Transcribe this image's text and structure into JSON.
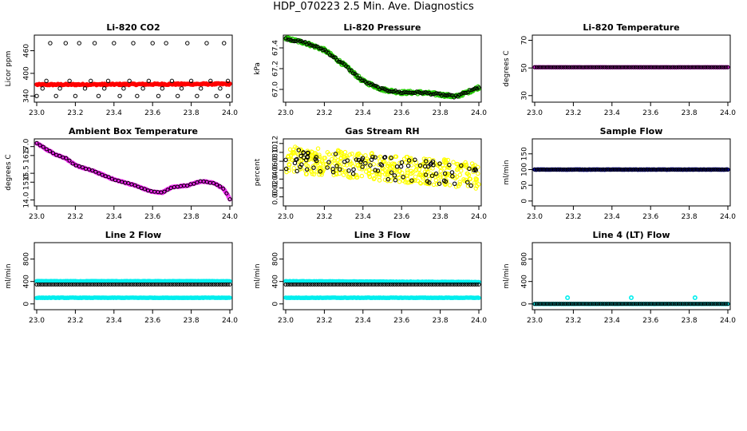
{
  "page_title": "HDP_070223  2.5 Min. Ave. Diagnostics",
  "colors": {
    "axes": "#000000",
    "red": "#ff0000",
    "green": "#22cc00",
    "magenta": "#ee22ee",
    "yellow": "#ffff00",
    "blue": "#0000cc",
    "cyan": "#00eeee",
    "black_marker": "#000000"
  },
  "chart_data": [
    {
      "type": "scatter",
      "title": "Li-820 CO2",
      "ylabel": "Licor ppm",
      "xlabel": "",
      "xlim": [
        23.0,
        24.0
      ],
      "ylim": [
        330,
        495
      ],
      "xticks": [
        "23.0",
        "23.2",
        "23.4",
        "23.6",
        "23.8",
        "24.0"
      ],
      "yticks": [
        340,
        400,
        460
      ],
      "series": [
        {
          "color": "red",
          "style": "dense",
          "y_start": 370,
          "y_end": 372,
          "noise": 2
        },
        {
          "color": "black",
          "style": "open",
          "points": [
            [
              23.0,
              340
            ],
            [
              23.03,
              360
            ],
            [
              23.05,
              380
            ],
            [
              23.07,
              480
            ],
            [
              23.1,
              340
            ],
            [
              23.12,
              360
            ],
            [
              23.15,
              480
            ],
            [
              23.17,
              380
            ],
            [
              23.2,
              340
            ],
            [
              23.22,
              480
            ],
            [
              23.25,
              360
            ],
            [
              23.28,
              380
            ],
            [
              23.3,
              480
            ],
            [
              23.32,
              340
            ],
            [
              23.35,
              360
            ],
            [
              23.37,
              380
            ],
            [
              23.4,
              480
            ],
            [
              23.43,
              340
            ],
            [
              23.45,
              360
            ],
            [
              23.48,
              380
            ],
            [
              23.5,
              480
            ],
            [
              23.52,
              340
            ],
            [
              23.55,
              360
            ],
            [
              23.58,
              380
            ],
            [
              23.6,
              480
            ],
            [
              23.63,
              340
            ],
            [
              23.65,
              360
            ],
            [
              23.67,
              480
            ],
            [
              23.7,
              380
            ],
            [
              23.73,
              340
            ],
            [
              23.75,
              360
            ],
            [
              23.78,
              480
            ],
            [
              23.8,
              380
            ],
            [
              23.83,
              340
            ],
            [
              23.85,
              360
            ],
            [
              23.88,
              480
            ],
            [
              23.9,
              380
            ],
            [
              23.93,
              340
            ],
            [
              23.95,
              360
            ],
            [
              23.97,
              480
            ],
            [
              23.99,
              380
            ],
            [
              23.99,
              340
            ]
          ]
        }
      ]
    },
    {
      "type": "scatter",
      "title": "Li-820 Pressure",
      "ylabel": "kPa",
      "xlabel": "",
      "xlim": [
        23.0,
        24.0
      ],
      "ylim": [
        66.9,
        67.5
      ],
      "xticks": [
        "23.0",
        "23.2",
        "23.4",
        "23.6",
        "23.8",
        "24.0"
      ],
      "yticks": [
        "67.0",
        "67.2",
        "67.4"
      ],
      "series": [
        {
          "color": "green",
          "style": "dense-curve",
          "noise": 0.015,
          "curve": [
            [
              23.0,
              67.49
            ],
            [
              23.1,
              67.45
            ],
            [
              23.2,
              67.38
            ],
            [
              23.3,
              67.24
            ],
            [
              23.4,
              67.08
            ],
            [
              23.5,
              67.0
            ],
            [
              23.6,
              66.97
            ],
            [
              23.7,
              66.97
            ],
            [
              23.8,
              66.95
            ],
            [
              23.88,
              66.93
            ],
            [
              23.95,
              66.98
            ],
            [
              24.0,
              67.02
            ]
          ]
        },
        {
          "color": "black",
          "style": "open-curve",
          "count": 110,
          "noise": 0.01,
          "curve": [
            [
              23.0,
              67.49
            ],
            [
              23.1,
              67.45
            ],
            [
              23.2,
              67.38
            ],
            [
              23.3,
              67.24
            ],
            [
              23.4,
              67.08
            ],
            [
              23.5,
              67.0
            ],
            [
              23.6,
              66.97
            ],
            [
              23.7,
              66.97
            ],
            [
              23.8,
              66.95
            ],
            [
              23.88,
              66.93
            ],
            [
              23.95,
              66.98
            ],
            [
              24.0,
              67.02
            ]
          ]
        }
      ]
    },
    {
      "type": "scatter",
      "title": "Li-820 Temperature",
      "ylabel": "degrees C",
      "xlabel": "",
      "xlim": [
        23.0,
        24.0
      ],
      "ylim": [
        27,
        72
      ],
      "xticks": [
        "23.0",
        "23.2",
        "23.4",
        "23.6",
        "23.8",
        "24.0"
      ],
      "yticks": [
        30,
        50,
        70
      ],
      "series": [
        {
          "color": "magenta",
          "style": "dense",
          "y_start": 50.5,
          "y_end": 50.5,
          "noise": 0.1
        },
        {
          "color": "black",
          "style": "open-line",
          "count": 95,
          "y": 50.5
        }
      ]
    },
    {
      "type": "scatter",
      "title": "Ambient Box Temperature",
      "ylabel": "degrees C",
      "xlabel": "",
      "xlim": [
        23.0,
        24.0
      ],
      "ylim": [
        13.8,
        17.3
      ],
      "xticks": [
        "23.0",
        "23.2",
        "23.4",
        "23.6",
        "23.8",
        "24.0"
      ],
      "yticks": [
        "14.0",
        "15.0",
        "15.5",
        "16.5",
        "17.0"
      ],
      "series": [
        {
          "color": "magenta",
          "style": "dense-curve",
          "noise": 0.03,
          "curve": [
            [
              23.0,
              17.2
            ],
            [
              23.05,
              16.85
            ],
            [
              23.1,
              16.55
            ],
            [
              23.15,
              16.35
            ],
            [
              23.2,
              15.95
            ],
            [
              23.3,
              15.6
            ],
            [
              23.4,
              15.15
            ],
            [
              23.5,
              14.85
            ],
            [
              23.6,
              14.45
            ],
            [
              23.65,
              14.42
            ],
            [
              23.7,
              14.72
            ],
            [
              23.78,
              14.82
            ],
            [
              23.85,
              15.05
            ],
            [
              23.92,
              14.95
            ],
            [
              23.97,
              14.6
            ],
            [
              24.0,
              14.05
            ]
          ]
        },
        {
          "color": "black",
          "style": "open-curve",
          "count": 60,
          "noise": 0.02,
          "curve": [
            [
              23.0,
              17.2
            ],
            [
              23.05,
              16.85
            ],
            [
              23.1,
              16.55
            ],
            [
              23.15,
              16.35
            ],
            [
              23.2,
              15.95
            ],
            [
              23.3,
              15.6
            ],
            [
              23.4,
              15.15
            ],
            [
              23.5,
              14.85
            ],
            [
              23.6,
              14.45
            ],
            [
              23.65,
              14.42
            ],
            [
              23.7,
              14.72
            ],
            [
              23.78,
              14.82
            ],
            [
              23.85,
              15.05
            ],
            [
              23.92,
              14.95
            ],
            [
              23.97,
              14.6
            ],
            [
              24.0,
              14.05
            ]
          ]
        }
      ]
    },
    {
      "type": "scatter",
      "title": "Gas Stream RH",
      "ylabel": "percent",
      "xlabel": "",
      "xlim": [
        23.0,
        24.0
      ],
      "ylim": [
        -0.015,
        0.125
      ],
      "xticks": [
        "23.0",
        "23.2",
        "23.4",
        "23.6",
        "23.8",
        "24.0"
      ],
      "yticks": [
        "0.00",
        "0.02",
        "0.04",
        "0.06",
        "0.08",
        "0.10",
        "0.12"
      ],
      "series": [
        {
          "color": "yellow",
          "style": "scatter-band",
          "count": 420,
          "y_start": 0.085,
          "y_end": 0.048,
          "spread": 0.03
        },
        {
          "color": "black",
          "style": "scatter-band",
          "count": 95,
          "y_start": 0.085,
          "y_end": 0.045,
          "spread": 0.025
        }
      ]
    },
    {
      "type": "scatter",
      "title": "Sample Flow",
      "ylabel": "ml/min",
      "xlabel": "",
      "xlim": [
        23.0,
        24.0
      ],
      "ylim": [
        -8,
        190
      ],
      "xticks": [
        "23.0",
        "23.2",
        "23.4",
        "23.6",
        "23.8",
        "24.0"
      ],
      "yticks": [
        0,
        50,
        100,
        150
      ],
      "series": [
        {
          "color": "blue",
          "style": "dense",
          "y_start": 100,
          "y_end": 100,
          "noise": 0.5
        },
        {
          "color": "black",
          "style": "open-line",
          "count": 95,
          "y": 100
        }
      ]
    },
    {
      "type": "scatter",
      "title": "Line 2 Flow",
      "ylabel": "ml/min",
      "xlabel": "",
      "xlim": [
        23.0,
        24.0
      ],
      "ylim": [
        -60,
        1050
      ],
      "xticks": [
        "23.0",
        "23.2",
        "23.4",
        "23.6",
        "23.8",
        "24.0"
      ],
      "yticks": [
        0,
        400,
        800
      ],
      "series": [
        {
          "color": "cyan",
          "style": "dense",
          "y_start": 405,
          "y_end": 405,
          "noise": 4
        },
        {
          "color": "cyan",
          "style": "dense",
          "y_start": 110,
          "y_end": 110,
          "noise": 4
        },
        {
          "color": "black",
          "style": "open-line",
          "count": 95,
          "y": 345
        }
      ]
    },
    {
      "type": "scatter",
      "title": "Line 3 Flow",
      "ylabel": "ml/min",
      "xlabel": "",
      "xlim": [
        23.0,
        24.0
      ],
      "ylim": [
        -60,
        1050
      ],
      "xticks": [
        "23.0",
        "23.2",
        "23.4",
        "23.6",
        "23.8",
        "24.0"
      ],
      "yticks": [
        0,
        400,
        800
      ],
      "series": [
        {
          "color": "cyan",
          "style": "dense",
          "y_start": 405,
          "y_end": 390,
          "noise": 4
        },
        {
          "color": "cyan",
          "style": "dense",
          "y_start": 110,
          "y_end": 110,
          "noise": 4
        },
        {
          "color": "black",
          "style": "open-line",
          "count": 95,
          "y": 345
        }
      ]
    },
    {
      "type": "scatter",
      "title": "Line 4 (LT) Flow",
      "ylabel": "ml/min",
      "xlabel": "",
      "xlim": [
        23.0,
        24.0
      ],
      "ylim": [
        -60,
        1050
      ],
      "xticks": [
        "23.0",
        "23.2",
        "23.4",
        "23.6",
        "23.8",
        "24.0"
      ],
      "yticks": [
        0,
        400,
        800
      ],
      "series": [
        {
          "color": "cyan",
          "style": "dense",
          "y_start": 0,
          "y_end": 0,
          "noise": 2
        },
        {
          "color": "cyan",
          "style": "points",
          "points": [
            [
              23.17,
              110
            ],
            [
              23.5,
              110
            ],
            [
              23.83,
              110
            ]
          ]
        },
        {
          "color": "black",
          "style": "open-line",
          "count": 95,
          "y": 0
        }
      ]
    }
  ]
}
